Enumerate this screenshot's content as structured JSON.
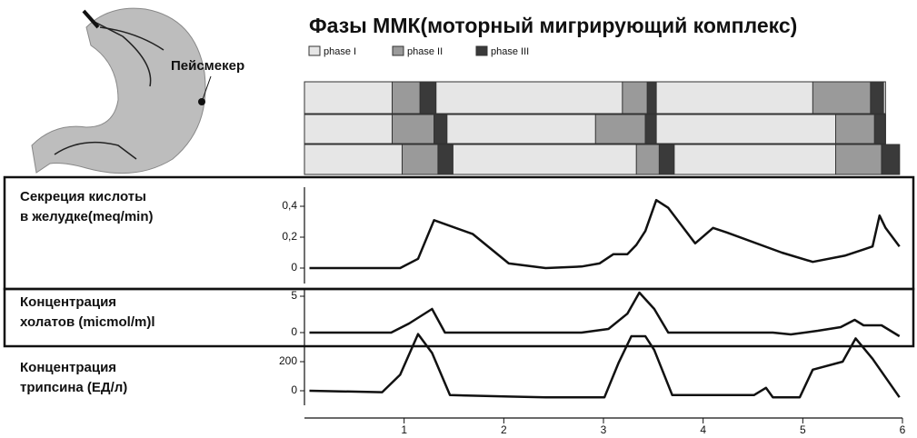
{
  "title": "Фазы ММК(моторный мигрирующий комплекс)",
  "pacemaker_label": "Пейсмекер",
  "chart_data": [
    {
      "type": "timeline",
      "xlim": [
        0,
        6
      ],
      "series": [
        {
          "name": "phase I",
          "color": "#e6e6e6",
          "rows": [
            [
              [
                0,
                5.83
              ]
            ],
            [
              [
                0,
                5.83
              ]
            ],
            [
              [
                0,
                5.97
              ]
            ]
          ]
        },
        {
          "name": "phase II",
          "color": "#9a9a9a",
          "rows": [
            [
              [
                0.88,
                1.16
              ],
              [
                3.19,
                3.44
              ],
              [
                5.1,
                5.68
              ]
            ],
            [
              [
                0.88,
                1.3
              ],
              [
                2.92,
                3.42
              ],
              [
                5.33,
                5.72
              ]
            ],
            [
              [
                0.98,
                1.34
              ],
              [
                3.33,
                3.56
              ],
              [
                5.33,
                5.79
              ]
            ]
          ]
        },
        {
          "name": "phase III",
          "color": "#3a3a3a",
          "rows": [
            [
              [
                1.16,
                1.32
              ],
              [
                3.44,
                3.53
              ],
              [
                5.68,
                5.81
              ]
            ],
            [
              [
                1.3,
                1.43
              ],
              [
                3.42,
                3.53
              ],
              [
                5.72,
                5.83
              ]
            ],
            [
              [
                1.34,
                1.49
              ],
              [
                3.56,
                3.71
              ],
              [
                5.79,
                5.97
              ]
            ]
          ]
        }
      ]
    },
    {
      "type": "line",
      "title": [
        "Секреция кислоты",
        "в желудке(meq/min)"
      ],
      "color": "#111",
      "xlim": [
        0,
        6
      ],
      "ylim": [
        -0.1,
        0.5
      ],
      "yticks": [
        0,
        {
          "value": 0.2,
          "label": "0,2"
        },
        {
          "value": 0.4,
          "label": "0,4"
        }
      ],
      "x": [
        0.05,
        0.96,
        1.14,
        1.3,
        1.69,
        2.05,
        2.42,
        2.78,
        2.96,
        3.1,
        3.24,
        3.33,
        3.42,
        3.53,
        3.65,
        3.92,
        4.1,
        4.24,
        4.79,
        5.1,
        5.42,
        5.61,
        5.7,
        5.77,
        5.83,
        5.97
      ],
      "values": [
        0,
        0,
        0.06,
        0.31,
        0.22,
        0.03,
        0,
        0.01,
        0.03,
        0.09,
        0.09,
        0.15,
        0.24,
        0.44,
        0.39,
        0.16,
        0.26,
        0.23,
        0.1,
        0.04,
        0.08,
        0.12,
        0.14,
        0.34,
        0.26,
        0.14
      ]
    },
    {
      "type": "line",
      "title": [
        "Концентрация",
        "холатов (micmol/m)l"
      ],
      "color": "#111",
      "xlim": [
        0,
        6
      ],
      "ylim": [
        -1.5,
        5.5
      ],
      "yticks": [
        0,
        5
      ],
      "x": [
        0.05,
        0.87,
        1.05,
        1.28,
        1.41,
        2.05,
        2.78,
        3.05,
        3.24,
        3.36,
        3.51,
        3.65,
        4.24,
        4.7,
        4.88,
        5.15,
        5.38,
        5.52,
        5.61,
        5.79,
        5.97
      ],
      "values": [
        0,
        0,
        1.25,
        3.25,
        0,
        0,
        0,
        0.5,
        2.6,
        5.5,
        3.25,
        0,
        0,
        0,
        -0.25,
        0.25,
        0.75,
        1.75,
        1,
        1,
        -0.5
      ]
    },
    {
      "type": "line",
      "title": [
        "Концентрация",
        "трипсина (ЕД/л)"
      ],
      "color": "#111",
      "xlim": [
        0,
        6
      ],
      "ylim": [
        -100,
        300
      ],
      "yticks": [
        0,
        200
      ],
      "xticks": [
        1,
        2,
        3,
        4,
        5,
        6
      ],
      "x": [
        0.05,
        0.78,
        0.96,
        1.14,
        1.28,
        1.46,
        2.05,
        2.42,
        3.01,
        3.15,
        3.28,
        3.42,
        3.51,
        3.69,
        4.24,
        4.51,
        4.63,
        4.7,
        4.97,
        5.1,
        5.4,
        5.53,
        5.7,
        5.97
      ],
      "values": [
        0,
        -10,
        110,
        390,
        260,
        -30,
        -40,
        -45,
        -45,
        190,
        375,
        375,
        280,
        -30,
        -30,
        -30,
        20,
        -45,
        -45,
        145,
        200,
        360,
        220,
        -45
      ]
    }
  ]
}
